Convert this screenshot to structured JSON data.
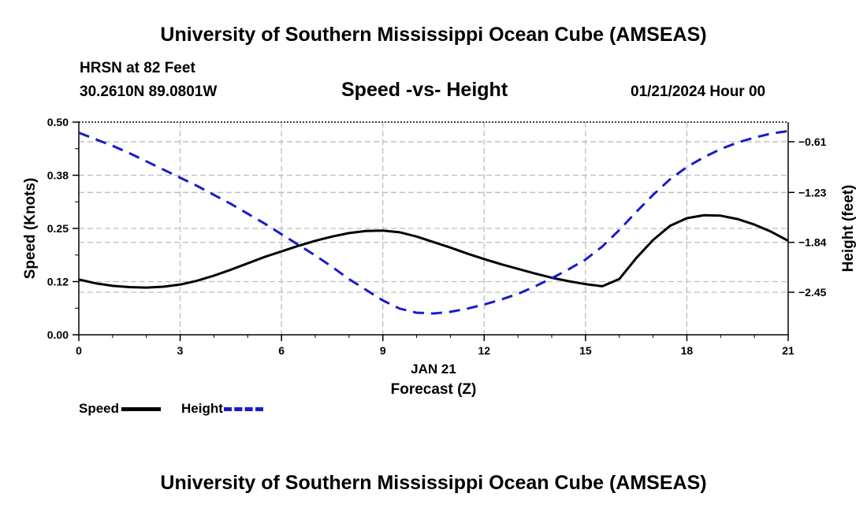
{
  "header": {
    "title_top": "University of Southern Mississippi Ocean Cube (AMSEAS)",
    "title_bottom": "University of Southern Mississippi Ocean Cube (AMSEAS)",
    "station": "HRSN at 82 Feet",
    "coords": "30.2610N  89.0801W",
    "chart_title": "Speed -vs- Height",
    "datetime": "01/21/2024 Hour 00"
  },
  "colors": {
    "speed": "#000000",
    "height": "#1a1acc",
    "grid": "#bdbdbd",
    "background": "#ffffff"
  },
  "legend": {
    "speed_label": "Speed",
    "height_label": "Height"
  },
  "chart_data": {
    "type": "line",
    "title": "Speed -vs- Height",
    "xlabel": "Forecast (Z)",
    "xlabel_date": "JAN 21",
    "ylabel": "Speed (Knots)",
    "y2label": "Height (feet)",
    "xlim": [
      0,
      21
    ],
    "ylim": [
      0,
      0.5
    ],
    "y2lim": [
      -2.97,
      -0.37
    ],
    "grid": true,
    "x_ticks": [
      0,
      3,
      6,
      9,
      12,
      15,
      18,
      21
    ],
    "x_tick_labels": [
      "0",
      "3",
      "6",
      "9",
      "12",
      "15",
      "18",
      "21"
    ],
    "y_ticks": [
      0,
      0.125,
      0.25,
      0.375,
      0.5
    ],
    "y_tick_labels": [
      "0.00",
      "0.12",
      "0.25",
      "0.38",
      "0.50"
    ],
    "y2_ticks": [
      -2.45,
      -1.84,
      -1.23,
      -0.61
    ],
    "y2_tick_labels": [
      "−2.45",
      "−1.84",
      "−1.23",
      "−0.61"
    ],
    "legend_position": "bottom-left",
    "series": [
      {
        "name": "Speed",
        "axis": "left",
        "style": "solid",
        "x": [
          0,
          0.5,
          1,
          1.5,
          2,
          2.5,
          3,
          3.5,
          4,
          4.5,
          5,
          5.5,
          6,
          6.5,
          7,
          7.5,
          8,
          8.5,
          9,
          9.5,
          10,
          10.5,
          11,
          11.5,
          12,
          12.5,
          13,
          13.5,
          14,
          14.5,
          15,
          15.5,
          16,
          16.5,
          17,
          17.5,
          18,
          18.5,
          19,
          19.5,
          20,
          20.5,
          21
        ],
        "values": [
          0.13,
          0.121,
          0.115,
          0.112,
          0.111,
          0.113,
          0.118,
          0.127,
          0.139,
          0.153,
          0.168,
          0.183,
          0.196,
          0.209,
          0.221,
          0.231,
          0.239,
          0.244,
          0.245,
          0.241,
          0.231,
          0.218,
          0.205,
          0.191,
          0.178,
          0.166,
          0.155,
          0.144,
          0.134,
          0.126,
          0.119,
          0.114,
          0.131,
          0.18,
          0.223,
          0.256,
          0.274,
          0.281,
          0.28,
          0.272,
          0.259,
          0.242,
          0.221
        ]
      },
      {
        "name": "Height",
        "axis": "right",
        "style": "dashed",
        "x": [
          0,
          0.5,
          1,
          1.5,
          2,
          2.5,
          3,
          3.5,
          4,
          4.5,
          5,
          5.5,
          6,
          6.5,
          7,
          7.5,
          8,
          8.5,
          9,
          9.5,
          10,
          10.5,
          11,
          11.5,
          12,
          12.5,
          13,
          13.5,
          14,
          14.5,
          15,
          15.5,
          16,
          16.5,
          17,
          17.5,
          18,
          18.5,
          19,
          19.5,
          20,
          20.5,
          21
        ],
        "values": [
          -0.5,
          -0.58,
          -0.66,
          -0.75,
          -0.85,
          -0.95,
          -1.05,
          -1.15,
          -1.26,
          -1.37,
          -1.49,
          -1.61,
          -1.74,
          -1.87,
          -2.0,
          -2.14,
          -2.29,
          -2.42,
          -2.55,
          -2.65,
          -2.7,
          -2.71,
          -2.69,
          -2.65,
          -2.6,
          -2.54,
          -2.47,
          -2.38,
          -2.28,
          -2.17,
          -2.05,
          -1.89,
          -1.69,
          -1.47,
          -1.26,
          -1.07,
          -0.92,
          -0.8,
          -0.7,
          -0.62,
          -0.56,
          -0.51,
          -0.48
        ]
      }
    ]
  }
}
